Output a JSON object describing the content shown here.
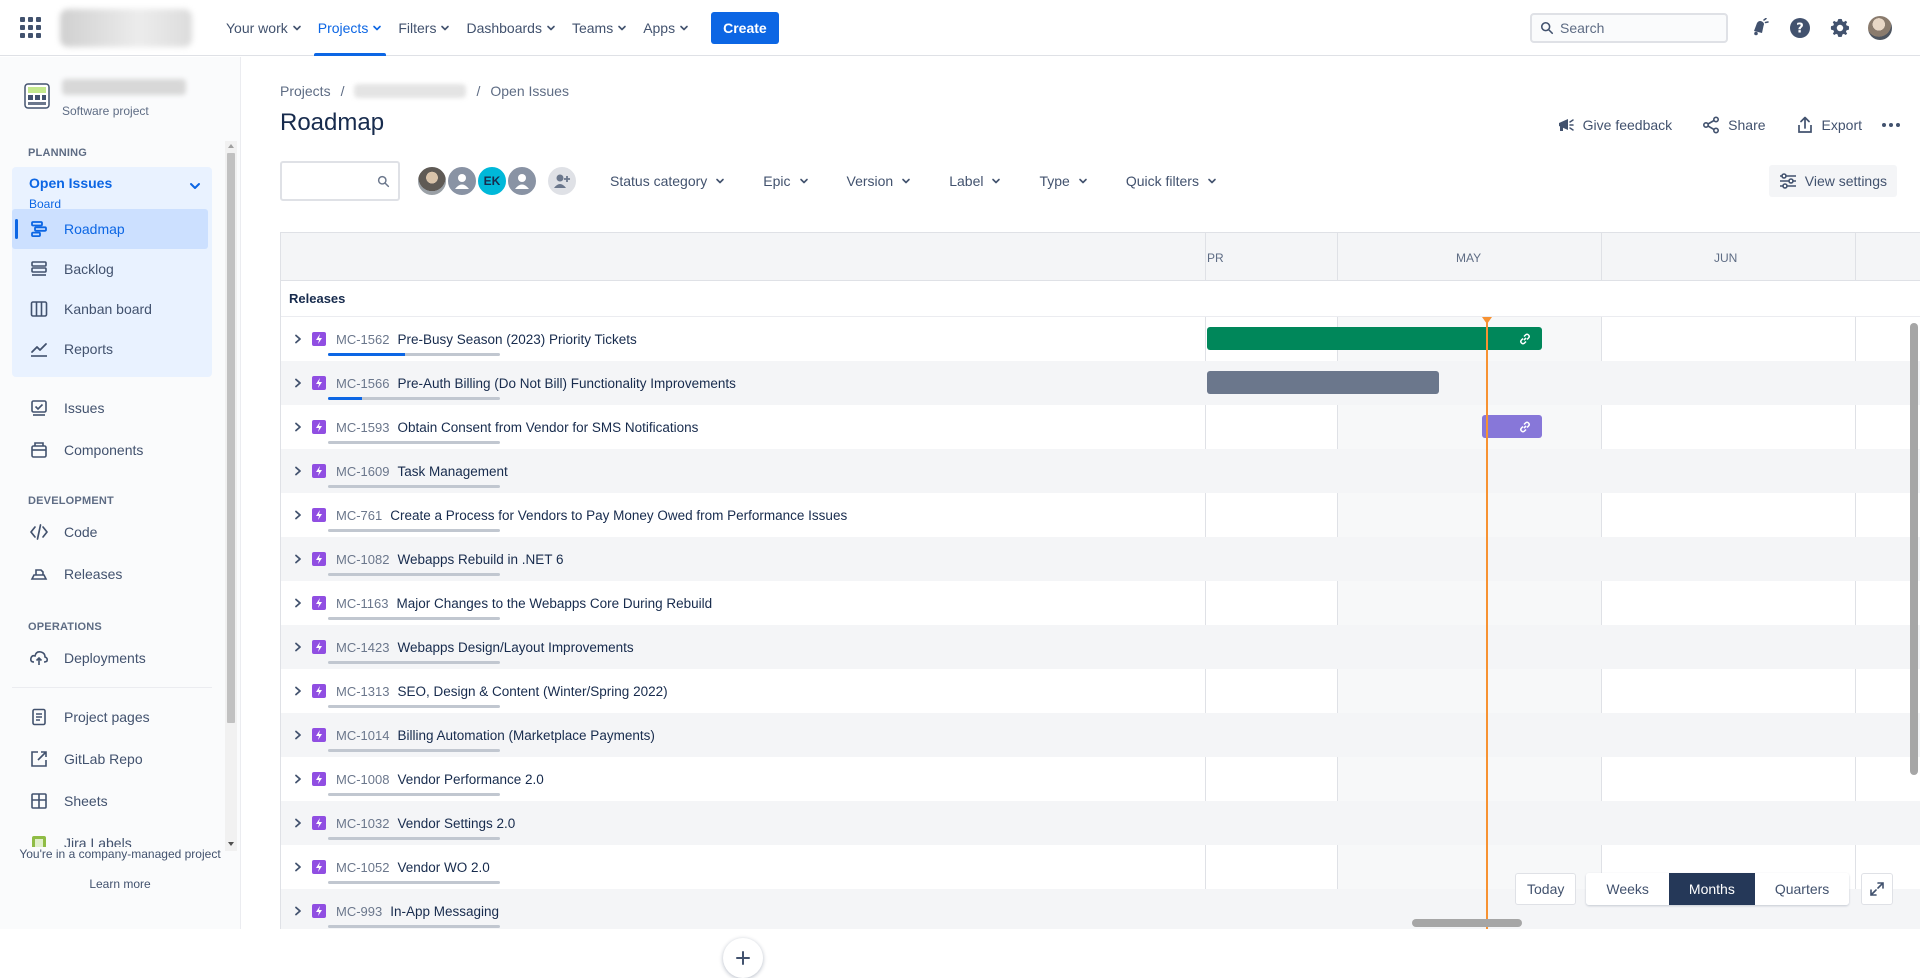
{
  "topnav": {
    "items": [
      {
        "label": "Your work",
        "active": false
      },
      {
        "label": "Projects",
        "active": true
      },
      {
        "label": "Filters",
        "active": false
      },
      {
        "label": "Dashboards",
        "active": false
      },
      {
        "label": "Teams",
        "active": false
      },
      {
        "label": "Apps",
        "active": false
      }
    ],
    "create_label": "Create",
    "search_placeholder": "Search",
    "icons": [
      "notifications-icon",
      "help-icon",
      "settings-icon"
    ]
  },
  "sidebar": {
    "project_type": "Software project",
    "planning_label": "PLANNING",
    "board": {
      "title": "Open Issues",
      "subtitle": "Board"
    },
    "board_items": [
      {
        "label": "Roadmap",
        "icon": "roadmap-icon",
        "active": true
      },
      {
        "label": "Backlog",
        "icon": "backlog-icon",
        "active": false
      },
      {
        "label": "Kanban board",
        "icon": "kanban-icon",
        "active": false
      },
      {
        "label": "Reports",
        "icon": "reports-icon",
        "active": false
      }
    ],
    "planning_items": [
      {
        "label": "Issues",
        "icon": "issues-icon"
      },
      {
        "label": "Components",
        "icon": "components-icon"
      }
    ],
    "development_label": "DEVELOPMENT",
    "development_items": [
      {
        "label": "Code",
        "icon": "code-icon"
      },
      {
        "label": "Releases",
        "icon": "releases-icon"
      }
    ],
    "operations_label": "OPERATIONS",
    "operations_items": [
      {
        "label": "Deployments",
        "icon": "deployments-icon"
      }
    ],
    "extra_items": [
      {
        "label": "Project pages",
        "icon": "pages-icon"
      },
      {
        "label": "GitLab Repo",
        "icon": "external-link-icon"
      },
      {
        "label": "Sheets",
        "icon": "sheets-icon"
      },
      {
        "label": "Jira Labels",
        "icon": "labels-icon"
      }
    ],
    "footer_note": "You're in a company-managed project",
    "footer_link": "Learn more"
  },
  "main": {
    "breadcrumb": {
      "root": "Projects",
      "leaf": "Open Issues"
    },
    "title": "Roadmap",
    "actions": {
      "feedback": "Give feedback",
      "share": "Share",
      "export": "Export"
    },
    "filters": [
      "Status category",
      "Epic",
      "Version",
      "Label",
      "Type",
      "Quick filters"
    ],
    "avatar_initials": "EK",
    "view_settings": "View settings"
  },
  "roadmap": {
    "months": [
      "PR",
      "MAY",
      "JUN"
    ],
    "releases_label": "Releases",
    "colors": {
      "green": "#00875a",
      "grey": "#6b778c",
      "purple": "#8777d9",
      "today": "#f79232"
    },
    "rows": [
      {
        "key": "MC-1562",
        "title": "Pre-Busy Season (2023) Priority Tickets",
        "progress": 0.45,
        "bar": "green",
        "link": true
      },
      {
        "key": "MC-1566",
        "title": "Pre-Auth Billing (Do Not Bill) Functionality Improvements",
        "progress": 0.2,
        "bar": "grey",
        "link": false
      },
      {
        "key": "MC-1593",
        "title": "Obtain Consent from Vendor for SMS Notifications",
        "progress": 0,
        "bar": "purple",
        "link": true
      },
      {
        "key": "MC-1609",
        "title": "Task Management",
        "progress": 0
      },
      {
        "key": "MC-761",
        "title": "Create a Process for Vendors to Pay Money Owed from Performance Issues",
        "progress": 0
      },
      {
        "key": "MC-1082",
        "title": "Webapps Rebuild in .NET 6",
        "progress": 0
      },
      {
        "key": "MC-1163",
        "title": "Major Changes to the Webapps Core During Rebuild",
        "progress": 0
      },
      {
        "key": "MC-1423",
        "title": "Webapps Design/Layout Improvements",
        "progress": 0
      },
      {
        "key": "MC-1313",
        "title": "SEO, Design & Content (Winter/Spring 2022)",
        "progress": 0
      },
      {
        "key": "MC-1014",
        "title": "Billing Automation (Marketplace Payments)",
        "progress": 0
      },
      {
        "key": "MC-1008",
        "title": "Vendor Performance 2.0",
        "progress": 0
      },
      {
        "key": "MC-1032",
        "title": "Vendor Settings 2.0",
        "progress": 0
      },
      {
        "key": "MC-1052",
        "title": "Vendor WO 2.0",
        "progress": 0
      },
      {
        "key": "MC-993",
        "title": "In-App Messaging",
        "progress": 0
      }
    ],
    "zoom": {
      "today": "Today",
      "options": [
        "Weeks",
        "Months",
        "Quarters"
      ],
      "active": "Months"
    }
  }
}
